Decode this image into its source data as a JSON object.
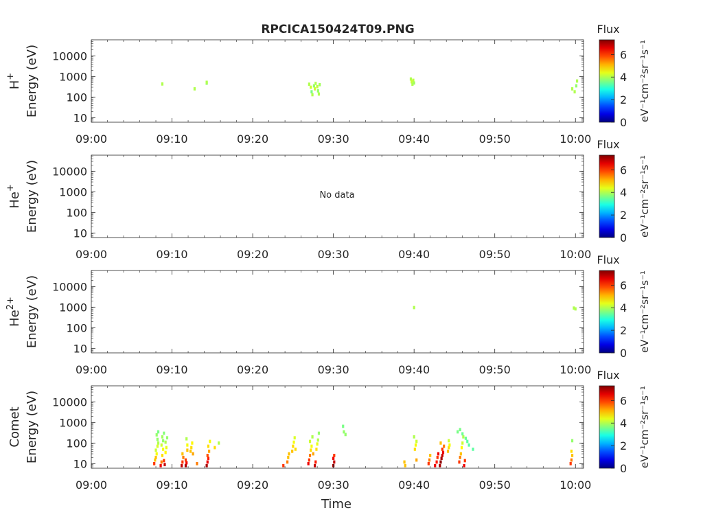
{
  "title": "RPCICA150424T09.PNG",
  "xlabel": "Time",
  "no_data_label": "No data",
  "colorbar": {
    "title": "Flux",
    "unit_label": "eV⁻¹cm⁻²sr⁻¹s⁻¹",
    "ticks": [
      "0",
      "2",
      "4",
      "6"
    ],
    "range": [
      0,
      7.3
    ],
    "colormap": "jet"
  },
  "chart_data": [
    {
      "type": "heatmap",
      "panel": "H+",
      "species_label": "H",
      "species_sup": "+",
      "ylabel": "Energy (eV)",
      "yscale": "log",
      "ylim": [
        6,
        60000
      ],
      "yticks": [
        "10",
        "100",
        "1000",
        "10000"
      ],
      "xticks": [
        "09:00",
        "09:10",
        "09:20",
        "09:30",
        "09:40",
        "09:50",
        "10:00"
      ],
      "xlim_minutes": [
        0,
        61
      ],
      "no_data": false,
      "cells": [
        [
          8.8,
          430,
          4.0
        ],
        [
          12.8,
          250,
          4.0
        ],
        [
          14.3,
          470,
          3.8
        ],
        [
          14.3,
          520,
          4.0
        ],
        [
          27.0,
          420,
          4.0
        ],
        [
          27.2,
          300,
          4.2
        ],
        [
          27.3,
          180,
          3.6
        ],
        [
          27.4,
          130,
          4.0
        ],
        [
          27.6,
          350,
          3.8
        ],
        [
          27.7,
          250,
          4.2
        ],
        [
          27.8,
          460,
          4.0
        ],
        [
          28.0,
          320,
          4.1
        ],
        [
          28.1,
          200,
          3.8
        ],
        [
          28.2,
          140,
          4.0
        ],
        [
          28.3,
          400,
          3.9
        ],
        [
          39.6,
          750,
          4.0
        ],
        [
          39.7,
          550,
          4.2
        ],
        [
          39.8,
          420,
          4.0
        ],
        [
          39.9,
          650,
          4.1
        ],
        [
          40.0,
          480,
          3.9
        ],
        [
          59.6,
          250,
          4.0
        ],
        [
          59.9,
          180,
          4.0
        ],
        [
          60.1,
          350,
          3.8
        ],
        [
          60.2,
          600,
          4.0
        ]
      ]
    },
    {
      "type": "heatmap",
      "panel": "He+",
      "species_label": "He",
      "species_sup": "+",
      "ylabel": "Energy (eV)",
      "yscale": "log",
      "ylim": [
        6,
        60000
      ],
      "yticks": [
        "10",
        "100",
        "1000",
        "10000"
      ],
      "xticks": [
        "09:00",
        "09:10",
        "09:20",
        "09:30",
        "09:40",
        "09:50",
        "10:00"
      ],
      "xlim_minutes": [
        0,
        61
      ],
      "no_data": true,
      "cells": []
    },
    {
      "type": "heatmap",
      "panel": "He2+",
      "species_label": "He",
      "species_sup": "2+",
      "ylabel": "Energy (eV)",
      "yscale": "log",
      "ylim": [
        6,
        60000
      ],
      "yticks": [
        "10",
        "100",
        "1000",
        "10000"
      ],
      "xticks": [
        "09:00",
        "09:10",
        "09:20",
        "09:30",
        "09:40",
        "09:50",
        "10:00"
      ],
      "xlim_minutes": [
        0,
        61
      ],
      "no_data": false,
      "cells": [
        [
          40.0,
          950,
          4.0
        ],
        [
          59.8,
          900,
          4.0
        ],
        [
          60.0,
          820,
          4.0
        ]
      ]
    },
    {
      "type": "heatmap",
      "panel": "Comet",
      "species_label": "Comet",
      "species_sup": "",
      "ylabel": "Energy (eV)",
      "yscale": "log",
      "ylim": [
        6,
        60000
      ],
      "yticks": [
        "10",
        "100",
        "1000",
        "10000"
      ],
      "xticks": [
        "09:00",
        "09:10",
        "09:20",
        "09:30",
        "09:40",
        "09:50",
        "10:00"
      ],
      "xlim_minutes": [
        0,
        61
      ],
      "no_data": false,
      "cells": [
        [
          7.8,
          10,
          6.0
        ],
        [
          7.9,
          15,
          5.0
        ],
        [
          8.0,
          20,
          5.0
        ],
        [
          8.1,
          30,
          4.5
        ],
        [
          8.0,
          45,
          4.2
        ],
        [
          8.2,
          70,
          4.3
        ],
        [
          8.3,
          100,
          4.0
        ],
        [
          8.2,
          150,
          3.8
        ],
        [
          8.1,
          250,
          3.8
        ],
        [
          8.3,
          350,
          3.6
        ],
        [
          8.6,
          8,
          6.5
        ],
        [
          8.7,
          12,
          5.5
        ],
        [
          8.8,
          25,
          4.8
        ],
        [
          8.9,
          50,
          4.5
        ],
        [
          8.7,
          80,
          4.2
        ],
        [
          8.9,
          130,
          3.8
        ],
        [
          8.8,
          200,
          3.9
        ],
        [
          9.0,
          300,
          3.7
        ],
        [
          9.1,
          9,
          6.8
        ],
        [
          9.0,
          14,
          6.0
        ],
        [
          9.2,
          35,
          4.6
        ],
        [
          9.3,
          60,
          4.4
        ],
        [
          9.2,
          110,
          4.0
        ],
        [
          9.4,
          180,
          3.8
        ],
        [
          11.2,
          8,
          6.8
        ],
        [
          11.3,
          12,
          6.0
        ],
        [
          11.4,
          20,
          5.5
        ],
        [
          11.3,
          30,
          5.0
        ],
        [
          11.7,
          8,
          7.0
        ],
        [
          11.8,
          11,
          6.5
        ],
        [
          11.7,
          15,
          6.0
        ],
        [
          11.9,
          45,
          5.0
        ],
        [
          11.9,
          80,
          4.5
        ],
        [
          11.8,
          160,
          4.0
        ],
        [
          12.3,
          40,
          5.0
        ],
        [
          12.4,
          60,
          4.8
        ],
        [
          12.6,
          30,
          5.2
        ],
        [
          12.5,
          100,
          4.6
        ],
        [
          13.1,
          10,
          5.5
        ],
        [
          14.3,
          8,
          7.0
        ],
        [
          14.4,
          12,
          6.5
        ],
        [
          14.5,
          18,
          6.2
        ],
        [
          14.4,
          25,
          5.8
        ],
        [
          14.6,
          40,
          5.2
        ],
        [
          14.5,
          70,
          4.8
        ],
        [
          14.7,
          120,
          4.5
        ],
        [
          15.3,
          60,
          4.8
        ],
        [
          15.8,
          100,
          4.0
        ],
        [
          23.8,
          8,
          6.0
        ],
        [
          24.3,
          12,
          5.5
        ],
        [
          24.4,
          20,
          5.0
        ],
        [
          24.5,
          30,
          5.0
        ],
        [
          24.9,
          40,
          5.0
        ],
        [
          25.0,
          70,
          4.8
        ],
        [
          25.1,
          110,
          4.5
        ],
        [
          25.2,
          180,
          4.3
        ],
        [
          25.3,
          50,
          4.8
        ],
        [
          26.9,
          10,
          6.5
        ],
        [
          27.0,
          15,
          6.0
        ],
        [
          27.1,
          25,
          5.5
        ],
        [
          27.2,
          45,
          4.8
        ],
        [
          27.3,
          70,
          4.5
        ],
        [
          27.1,
          120,
          4.2
        ],
        [
          27.4,
          200,
          4.0
        ],
        [
          27.5,
          30,
          5.2
        ],
        [
          27.7,
          8,
          6.8
        ],
        [
          27.8,
          12,
          6.2
        ],
        [
          27.9,
          50,
          4.8
        ],
        [
          28.0,
          90,
          4.4
        ],
        [
          28.1,
          140,
          4.0
        ],
        [
          28.2,
          300,
          3.8
        ],
        [
          30.0,
          8,
          7.0
        ],
        [
          30.1,
          12,
          6.8
        ],
        [
          30.0,
          18,
          6.5
        ],
        [
          30.1,
          25,
          6.0
        ],
        [
          31.3,
          350,
          3.8
        ],
        [
          31.5,
          260,
          3.8
        ],
        [
          31.2,
          650,
          3.6
        ],
        [
          38.8,
          12,
          5.0
        ],
        [
          38.9,
          8,
          5.0
        ],
        [
          40.1,
          50,
          4.8
        ],
        [
          40.2,
          80,
          4.5
        ],
        [
          40.3,
          120,
          4.2
        ],
        [
          40.0,
          200,
          4.0
        ],
        [
          40.3,
          15,
          5.2
        ],
        [
          41.8,
          10,
          6.0
        ],
        [
          41.9,
          15,
          5.5
        ],
        [
          42.0,
          25,
          5.0
        ],
        [
          42.6,
          8,
          6.5
        ],
        [
          42.8,
          12,
          6.2
        ],
        [
          42.9,
          20,
          6.0
        ],
        [
          43.0,
          30,
          6.5
        ],
        [
          43.2,
          8,
          7.0
        ],
        [
          43.3,
          12,
          7.2
        ],
        [
          43.4,
          18,
          7.0
        ],
        [
          43.5,
          25,
          6.8
        ],
        [
          43.6,
          35,
          6.5
        ],
        [
          43.5,
          50,
          6.0
        ],
        [
          43.7,
          70,
          5.5
        ],
        [
          43.3,
          100,
          5.0
        ],
        [
          44.2,
          40,
          5.0
        ],
        [
          44.3,
          60,
          4.8
        ],
        [
          44.4,
          80,
          4.5
        ],
        [
          44.3,
          130,
          4.2
        ],
        [
          45.6,
          12,
          6.0
        ],
        [
          45.7,
          20,
          5.5
        ],
        [
          45.8,
          30,
          5.0
        ],
        [
          45.9,
          60,
          4.6
        ],
        [
          46.0,
          100,
          4.2
        ],
        [
          46.1,
          200,
          4.0
        ],
        [
          46.2,
          8,
          6.5
        ],
        [
          46.3,
          14,
          6.0
        ],
        [
          45.4,
          350,
          3.6
        ],
        [
          45.7,
          450,
          3.6
        ],
        [
          46.0,
          280,
          3.5
        ],
        [
          46.4,
          170,
          3.5
        ],
        [
          46.6,
          120,
          3.4
        ],
        [
          46.8,
          80,
          3.4
        ],
        [
          47.3,
          50,
          3.4
        ],
        [
          59.4,
          10,
          6.0
        ],
        [
          59.5,
          15,
          5.5
        ],
        [
          59.6,
          25,
          5.0
        ],
        [
          59.5,
          40,
          4.8
        ],
        [
          59.6,
          130,
          3.8
        ]
      ]
    }
  ]
}
